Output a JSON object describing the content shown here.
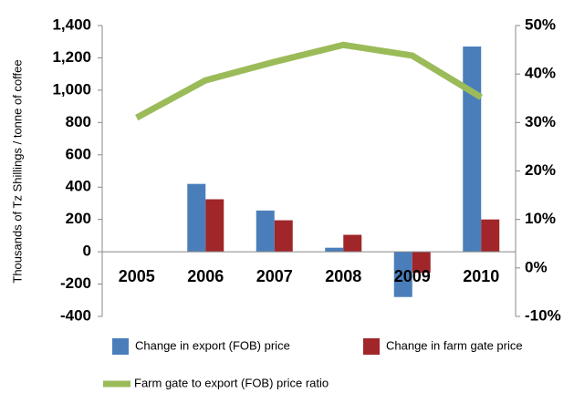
{
  "chart_data": {
    "type": "bar",
    "y_axis_label": "Thousands of Tz Shillings / tonne of coffee",
    "categories": [
      "2005",
      "2006",
      "2007",
      "2008",
      "2009",
      "2010"
    ],
    "series": [
      {
        "name": "Change in export (FOB) price",
        "color": "#4a7ebb",
        "values": [
          null,
          420,
          255,
          25,
          -280,
          1270
        ]
      },
      {
        "name": "Change in farm gate price",
        "color": "#a0262a",
        "values": [
          null,
          325,
          195,
          105,
          -130,
          200
        ]
      },
      {
        "name": "Farm gate to export (FOB) price ratio",
        "color": "#9bbb59",
        "type": "line",
        "axis": "y2",
        "values": [
          31,
          38.7,
          42.5,
          46,
          43.8,
          35.2
        ]
      }
    ],
    "ylim": [
      -400,
      1400
    ],
    "yticks": [
      -400,
      -200,
      0,
      200,
      400,
      600,
      800,
      {
        "value": 1000,
        "label": "1,000"
      },
      {
        "value": 1200,
        "label": "1,200"
      },
      {
        "value": 1400,
        "label": "1,400"
      }
    ],
    "y2lim": [
      -10,
      50
    ],
    "y2ticks": [
      {
        "value": -10,
        "label": "-10%"
      },
      {
        "value": 0,
        "label": "0%"
      },
      {
        "value": 10,
        "label": "10%"
      },
      {
        "value": 20,
        "label": "20%"
      },
      {
        "value": 30,
        "label": "30%"
      },
      {
        "value": 40,
        "label": "40%"
      },
      {
        "value": 50,
        "label": "50%"
      }
    ],
    "legend": "bottom"
  }
}
